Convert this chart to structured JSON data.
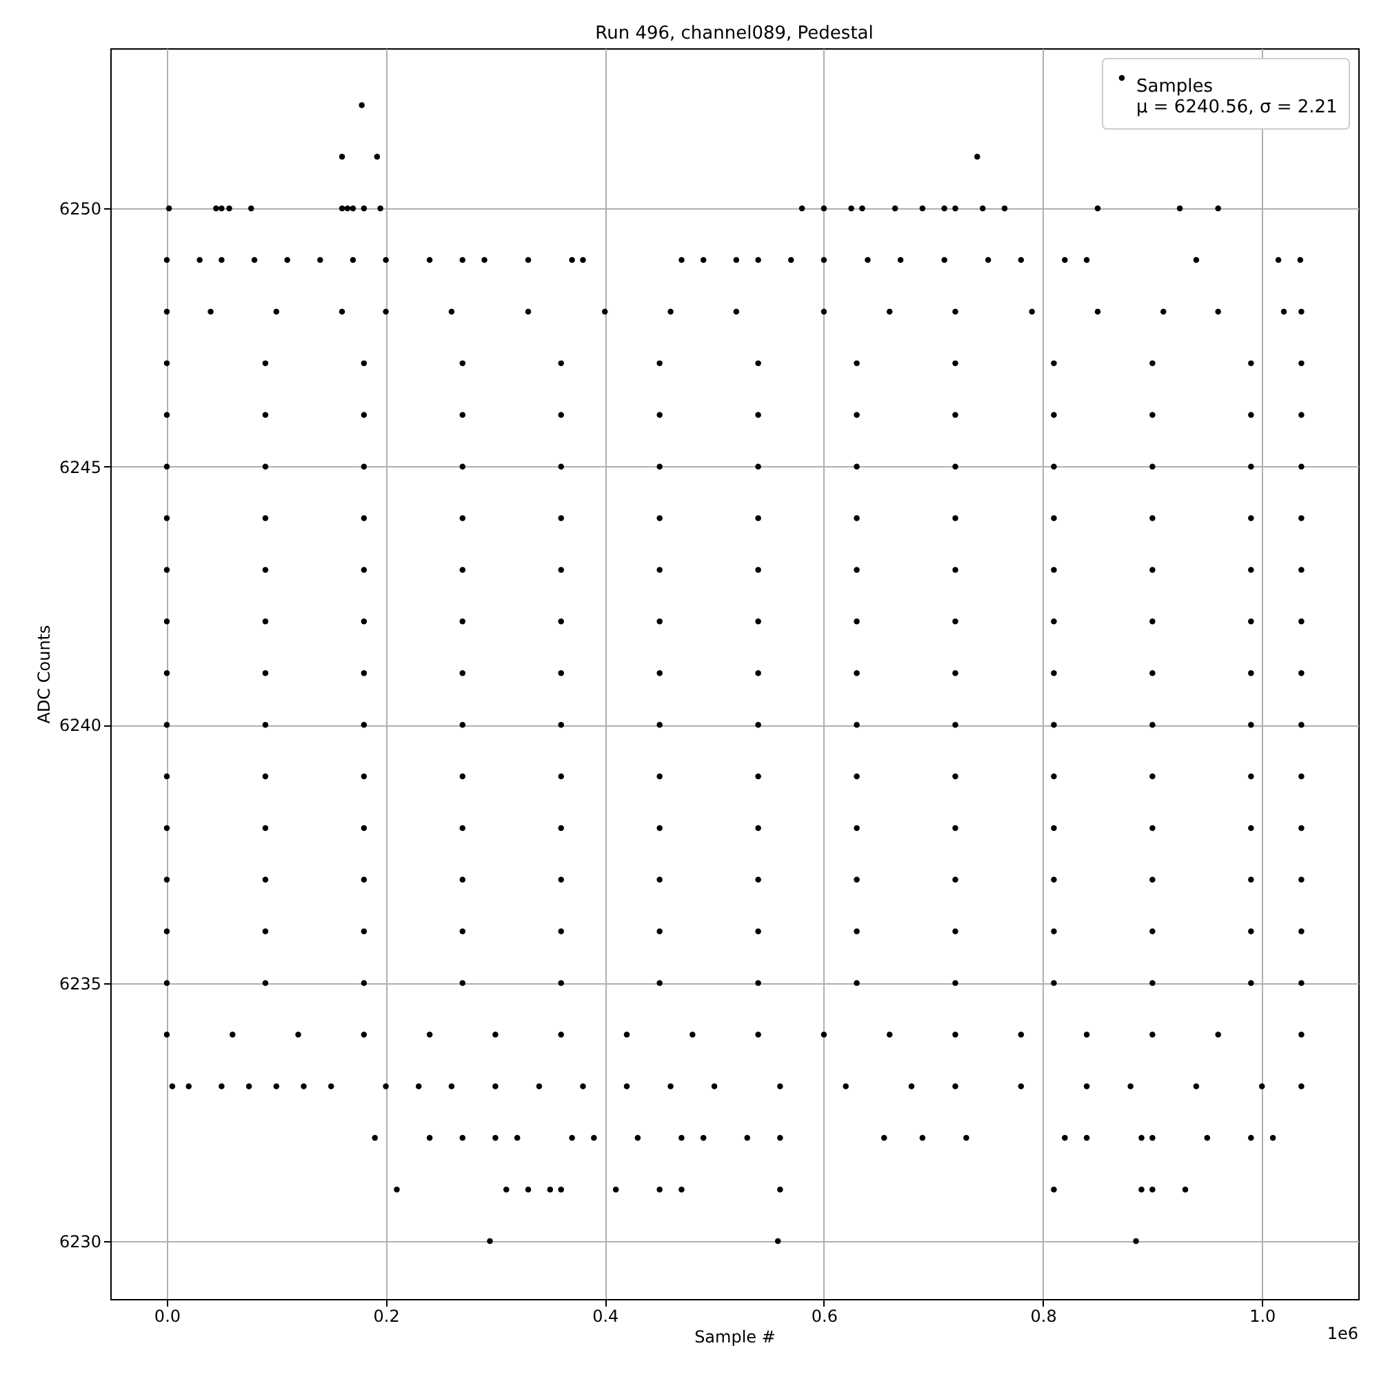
{
  "chart_data": {
    "type": "scatter",
    "title": "Run 496, channel089, Pedestal",
    "xlabel": "Sample #",
    "ylabel": "ADC Counts",
    "xlim": [
      -0.0516,
      1.088
    ],
    "ylim": [
      6228.88,
      6253.1
    ],
    "xticks": [
      {
        "value": 0,
        "label": "0.0"
      },
      0.2,
      0.4,
      0.6,
      0.8,
      {
        "value": 1,
        "label": "1.0"
      }
    ],
    "yticks": [
      6230,
      6235,
      6240,
      6245,
      6250
    ],
    "grid": true,
    "legend": "top right",
    "marker": "circle",
    "annotations": [
      "μ = 6240.56, σ = 2.21",
      "1e6"
    ],
    "series": [
      {
        "name": "Samples",
        "color": "#000000",
        "x": [
          0,
          0.09,
          0.18,
          0.27,
          0.36,
          0.45,
          0.54,
          0.63,
          0.72,
          0.81,
          0.9,
          0.99,
          1.036
        ],
        "values": [
          6240,
          6240,
          6240,
          6240,
          6240,
          6240,
          6240,
          6240,
          6240,
          6240,
          6240,
          6240,
          6240
        ]
      },
      {
        "color": "#000000",
        "x": [
          0.178
        ],
        "values": [
          6252
        ]
      },
      {
        "color": "#000000",
        "x": [
          0.16,
          0.192,
          0.74
        ],
        "values": [
          6251,
          6251,
          6251
        ]
      },
      {
        "color": "#000000",
        "x": [
          0.002,
          0.045,
          0.05,
          0.057,
          0.077,
          0.16,
          0.165,
          0.17,
          0.18,
          0.195,
          0.58,
          0.6,
          0.625,
          0.635,
          0.665,
          0.69,
          0.71,
          0.72,
          0.745,
          0.765,
          0.85,
          0.925,
          0.96
        ],
        "values": [
          6250,
          6250,
          6250,
          6250,
          6250,
          6250,
          6250,
          6250,
          6250,
          6250,
          6250,
          6250,
          6250,
          6250,
          6250,
          6250,
          6250,
          6250,
          6250,
          6250,
          6250,
          6250,
          6250
        ]
      },
      {
        "color": "#000000",
        "x": [
          0,
          0.03,
          0.05,
          0.08,
          0.11,
          0.14,
          0.17,
          0.2,
          0.24,
          0.27,
          0.29,
          0.33,
          0.37,
          0.38,
          0.47,
          0.49,
          0.52,
          0.54,
          0.57,
          0.6,
          0.64,
          0.67,
          0.71,
          0.75,
          0.78,
          0.82,
          0.84,
          0.94,
          1.015,
          1.035
        ],
        "values": [
          6249,
          6249,
          6249,
          6249,
          6249,
          6249,
          6249,
          6249,
          6249,
          6249,
          6249,
          6249,
          6249,
          6249,
          6249,
          6249,
          6249,
          6249,
          6249,
          6249,
          6249,
          6249,
          6249,
          6249,
          6249,
          6249,
          6249,
          6249,
          6249,
          6249
        ]
      },
      {
        "color": "#000000",
        "x": [
          0,
          0.04,
          0.1,
          0.16,
          0.2,
          0.26,
          0.33,
          0.4,
          0.46,
          0.52,
          0.6,
          0.66,
          0.72,
          0.79,
          0.85,
          0.91,
          0.96,
          1.02,
          1.036
        ],
        "values": [
          6248,
          6248,
          6248,
          6248,
          6248,
          6248,
          6248,
          6248,
          6248,
          6248,
          6248,
          6248,
          6248,
          6248,
          6248,
          6248,
          6248,
          6248,
          6248
        ]
      },
      {
        "color": "#000000",
        "x": [
          0,
          0.09,
          0.18,
          0.27,
          0.36,
          0.45,
          0.54,
          0.63,
          0.72,
          0.81,
          0.9,
          0.99,
          1.036
        ],
        "values": [
          6247,
          6247,
          6247,
          6247,
          6247,
          6247,
          6247,
          6247,
          6247,
          6247,
          6247,
          6247,
          6247
        ]
      },
      {
        "color": "#000000",
        "x": [
          0,
          0.09,
          0.18,
          0.27,
          0.36,
          0.45,
          0.54,
          0.63,
          0.72,
          0.81,
          0.9,
          0.99,
          1.036
        ],
        "values": [
          6246,
          6246,
          6246,
          6246,
          6246,
          6246,
          6246,
          6246,
          6246,
          6246,
          6246,
          6246,
          6246
        ]
      },
      {
        "color": "#000000",
        "x": [
          0,
          0.09,
          0.18,
          0.27,
          0.36,
          0.45,
          0.54,
          0.63,
          0.72,
          0.81,
          0.9,
          0.99,
          1.036
        ],
        "values": [
          6245,
          6245,
          6245,
          6245,
          6245,
          6245,
          6245,
          6245,
          6245,
          6245,
          6245,
          6245,
          6245
        ]
      },
      {
        "color": "#000000",
        "x": [
          0,
          0.09,
          0.18,
          0.27,
          0.36,
          0.45,
          0.54,
          0.63,
          0.72,
          0.81,
          0.9,
          0.99,
          1.036
        ],
        "values": [
          6244,
          6244,
          6244,
          6244,
          6244,
          6244,
          6244,
          6244,
          6244,
          6244,
          6244,
          6244,
          6244
        ]
      },
      {
        "color": "#000000",
        "x": [
          0,
          0.09,
          0.18,
          0.27,
          0.36,
          0.45,
          0.54,
          0.63,
          0.72,
          0.81,
          0.9,
          0.99,
          1.036
        ],
        "values": [
          6243,
          6243,
          6243,
          6243,
          6243,
          6243,
          6243,
          6243,
          6243,
          6243,
          6243,
          6243,
          6243
        ]
      },
      {
        "color": "#000000",
        "x": [
          0,
          0.09,
          0.18,
          0.27,
          0.36,
          0.45,
          0.54,
          0.63,
          0.72,
          0.81,
          0.9,
          0.99,
          1.036
        ],
        "values": [
          6242,
          6242,
          6242,
          6242,
          6242,
          6242,
          6242,
          6242,
          6242,
          6242,
          6242,
          6242,
          6242
        ]
      },
      {
        "color": "#000000",
        "x": [
          0,
          0.09,
          0.18,
          0.27,
          0.36,
          0.45,
          0.54,
          0.63,
          0.72,
          0.81,
          0.9,
          0.99,
          1.036
        ],
        "values": [
          6241,
          6241,
          6241,
          6241,
          6241,
          6241,
          6241,
          6241,
          6241,
          6241,
          6241,
          6241,
          6241
        ]
      },
      {
        "color": "#000000",
        "x": [
          0,
          0.09,
          0.18,
          0.27,
          0.36,
          0.45,
          0.54,
          0.63,
          0.72,
          0.81,
          0.9,
          0.99,
          1.036
        ],
        "values": [
          6239,
          6239,
          6239,
          6239,
          6239,
          6239,
          6239,
          6239,
          6239,
          6239,
          6239,
          6239,
          6239
        ]
      },
      {
        "color": "#000000",
        "x": [
          0,
          0.09,
          0.18,
          0.27,
          0.36,
          0.45,
          0.54,
          0.63,
          0.72,
          0.81,
          0.9,
          0.99,
          1.036
        ],
        "values": [
          6238,
          6238,
          6238,
          6238,
          6238,
          6238,
          6238,
          6238,
          6238,
          6238,
          6238,
          6238,
          6238
        ]
      },
      {
        "color": "#000000",
        "x": [
          0,
          0.09,
          0.18,
          0.27,
          0.36,
          0.45,
          0.54,
          0.63,
          0.72,
          0.81,
          0.9,
          0.99,
          1.036
        ],
        "values": [
          6237,
          6237,
          6237,
          6237,
          6237,
          6237,
          6237,
          6237,
          6237,
          6237,
          6237,
          6237,
          6237
        ]
      },
      {
        "color": "#000000",
        "x": [
          0,
          0.09,
          0.18,
          0.27,
          0.36,
          0.45,
          0.54,
          0.63,
          0.72,
          0.81,
          0.9,
          0.99,
          1.036
        ],
        "values": [
          6236,
          6236,
          6236,
          6236,
          6236,
          6236,
          6236,
          6236,
          6236,
          6236,
          6236,
          6236,
          6236
        ]
      },
      {
        "color": "#000000",
        "x": [
          0,
          0.09,
          0.18,
          0.27,
          0.36,
          0.45,
          0.54,
          0.63,
          0.72,
          0.81,
          0.9,
          0.99,
          1.036
        ],
        "values": [
          6235,
          6235,
          6235,
          6235,
          6235,
          6235,
          6235,
          6235,
          6235,
          6235,
          6235,
          6235,
          6235
        ]
      },
      {
        "color": "#000000",
        "x": [
          0,
          0.06,
          0.12,
          0.18,
          0.24,
          0.3,
          0.36,
          0.42,
          0.48,
          0.54,
          0.6,
          0.66,
          0.72,
          0.78,
          0.84,
          0.9,
          0.96,
          1.036
        ],
        "values": [
          6234,
          6234,
          6234,
          6234,
          6234,
          6234,
          6234,
          6234,
          6234,
          6234,
          6234,
          6234,
          6234,
          6234,
          6234,
          6234,
          6234,
          6234
        ]
      },
      {
        "color": "#000000",
        "x": [
          0.005,
          0.02,
          0.05,
          0.075,
          0.1,
          0.125,
          0.15,
          0.2,
          0.23,
          0.26,
          0.3,
          0.34,
          0.38,
          0.42,
          0.46,
          0.5,
          0.56,
          0.62,
          0.68,
          0.72,
          0.78,
          0.84,
          0.88,
          0.94,
          1.0,
          1.036
        ],
        "values": [
          6233,
          6233,
          6233,
          6233,
          6233,
          6233,
          6233,
          6233,
          6233,
          6233,
          6233,
          6233,
          6233,
          6233,
          6233,
          6233,
          6233,
          6233,
          6233,
          6233,
          6233,
          6233,
          6233,
          6233,
          6233,
          6233
        ]
      },
      {
        "color": "#000000",
        "x": [
          0.19,
          0.24,
          0.27,
          0.3,
          0.32,
          0.37,
          0.39,
          0.43,
          0.47,
          0.49,
          0.53,
          0.56,
          0.655,
          0.69,
          0.73,
          0.82,
          0.84,
          0.89,
          0.9,
          0.95,
          0.99,
          1.01
        ],
        "values": [
          6232,
          6232,
          6232,
          6232,
          6232,
          6232,
          6232,
          6232,
          6232,
          6232,
          6232,
          6232,
          6232,
          6232,
          6232,
          6232,
          6232,
          6232,
          6232,
          6232,
          6232,
          6232
        ]
      },
      {
        "color": "#000000",
        "x": [
          0.21,
          0.31,
          0.33,
          0.35,
          0.36,
          0.41,
          0.45,
          0.47,
          0.56,
          0.81,
          0.89,
          0.9,
          0.93
        ],
        "values": [
          6231,
          6231,
          6231,
          6231,
          6231,
          6231,
          6231,
          6231,
          6231,
          6231,
          6231,
          6231,
          6231
        ]
      },
      {
        "color": "#000000",
        "x": [
          0.295,
          0.558,
          0.885
        ],
        "values": [
          6230,
          6230,
          6230
        ]
      }
    ]
  }
}
